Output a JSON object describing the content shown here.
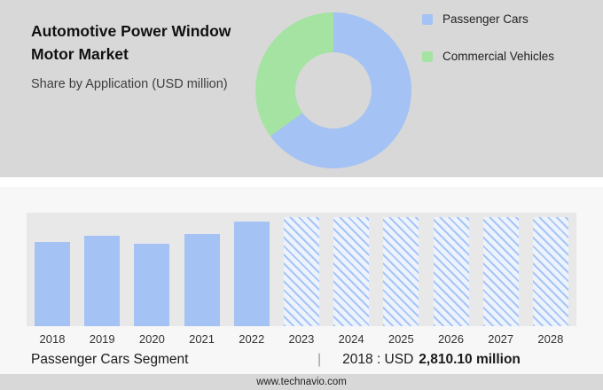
{
  "header": {
    "title_line1": "Automotive Power Window",
    "title_line2": "Motor Market",
    "subtitle": "Share by Application (USD million)"
  },
  "legend": {
    "items": [
      {
        "label": "Passenger Cars",
        "color": "#a4c2f4"
      },
      {
        "label": "Commercial Vehicles",
        "color": "#a5e3a2"
      }
    ]
  },
  "colors": {
    "header_background": "#d8d8d8",
    "band_background": "#e8e8e8",
    "bar_blue": "#a4c2f4",
    "pie_blue": "#a4c2f4",
    "pie_green": "#a5e3a2"
  },
  "chart_data": [
    {
      "type": "pie",
      "donut": true,
      "title": "Share by Application (USD million)",
      "labels": [
        "Passenger Cars",
        "Commercial Vehicles"
      ],
      "values_pct": [
        65,
        35
      ],
      "colors": [
        "#a4c2f4",
        "#a5e3a2"
      ],
      "legend_position": "right"
    },
    {
      "type": "bar",
      "title": "Passenger Cars Segment (USD million)",
      "categories": [
        "2018",
        "2019",
        "2020",
        "2021",
        "2022",
        "2023",
        "2024",
        "2025",
        "2026",
        "2027",
        "2028"
      ],
      "series": [
        {
          "name": "Passenger Cars",
          "height_pct": [
            74,
            80,
            73,
            81,
            92,
            96,
            96,
            96,
            96,
            96,
            96
          ],
          "estimated_values_usd_million": [
            2810.1,
            3040,
            2770,
            3080,
            3490,
            null,
            null,
            null,
            null,
            null,
            null
          ]
        }
      ],
      "forecast_years": [
        "2023",
        "2024",
        "2025",
        "2026",
        "2027",
        "2028"
      ],
      "labeled_value": {
        "year": "2018",
        "value": "USD 2,810.10 million"
      },
      "axis_labels_shown": "x-only",
      "grid": false
    }
  ],
  "caption": {
    "segment_label": "Passenger Cars Segment",
    "separator": "|",
    "prefix": "2018 : USD",
    "value": "2,810.10 million"
  },
  "footer": {
    "website": "www.technavio.com"
  }
}
